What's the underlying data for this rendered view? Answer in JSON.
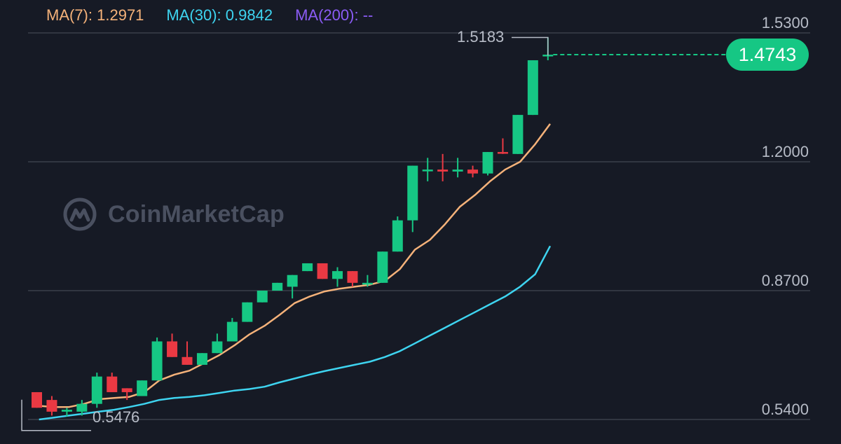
{
  "legend": {
    "ma7_label": "MA(7):",
    "ma7_value": "1.2971",
    "ma30_label": "MA(30):",
    "ma30_value": "0.9842",
    "ma200_label": "MA(200):",
    "ma200_value": "--"
  },
  "colors": {
    "background": "#161a25",
    "up": "#16c784",
    "down": "#ea3943",
    "ma7": "#f5b27a",
    "ma30": "#3ed4f0",
    "ma200": "#8b5cf6",
    "grid": "#3a3f4b",
    "text": "#b7bcc7"
  },
  "watermark": {
    "text": "CoinMarketCap",
    "icon": "coinmarketcap-logo-icon"
  },
  "last_price_label": "1.4743",
  "high_label": "1.5183",
  "low_label": "0.5476",
  "chart_data": {
    "type": "candlestick",
    "yticks": [
      1.53,
      1.2,
      0.87,
      0.54
    ],
    "ytick_labels": [
      "1.5300",
      "1.2000",
      "0.8700",
      "0.5400"
    ],
    "ylim": [
      0.52,
      1.55
    ],
    "grid": true,
    "last_price": 1.4743,
    "high": 1.5183,
    "low": 0.5476,
    "candles": [
      {
        "o": 0.61,
        "h": 0.61,
        "l": 0.57,
        "c": 0.57
      },
      {
        "o": 0.59,
        "h": 0.6,
        "l": 0.55,
        "c": 0.56
      },
      {
        "o": 0.56,
        "h": 0.57,
        "l": 0.548,
        "c": 0.565
      },
      {
        "o": 0.56,
        "h": 0.59,
        "l": 0.55,
        "c": 0.58
      },
      {
        "o": 0.58,
        "h": 0.66,
        "l": 0.57,
        "c": 0.65
      },
      {
        "o": 0.65,
        "h": 0.66,
        "l": 0.61,
        "c": 0.61
      },
      {
        "o": 0.62,
        "h": 0.62,
        "l": 0.59,
        "c": 0.61
      },
      {
        "o": 0.6,
        "h": 0.64,
        "l": 0.6,
        "c": 0.64
      },
      {
        "o": 0.64,
        "h": 0.75,
        "l": 0.64,
        "c": 0.74
      },
      {
        "o": 0.74,
        "h": 0.76,
        "l": 0.7,
        "c": 0.7
      },
      {
        "o": 0.7,
        "h": 0.74,
        "l": 0.68,
        "c": 0.68
      },
      {
        "o": 0.68,
        "h": 0.71,
        "l": 0.68,
        "c": 0.71
      },
      {
        "o": 0.71,
        "h": 0.76,
        "l": 0.71,
        "c": 0.74
      },
      {
        "o": 0.74,
        "h": 0.8,
        "l": 0.74,
        "c": 0.79
      },
      {
        "o": 0.79,
        "h": 0.84,
        "l": 0.79,
        "c": 0.84
      },
      {
        "o": 0.84,
        "h": 0.87,
        "l": 0.84,
        "c": 0.87
      },
      {
        "o": 0.87,
        "h": 0.89,
        "l": 0.87,
        "c": 0.89
      },
      {
        "o": 0.88,
        "h": 0.91,
        "l": 0.85,
        "c": 0.91
      },
      {
        "o": 0.92,
        "h": 0.94,
        "l": 0.92,
        "c": 0.94
      },
      {
        "o": 0.94,
        "h": 0.94,
        "l": 0.9,
        "c": 0.9
      },
      {
        "o": 0.9,
        "h": 0.93,
        "l": 0.88,
        "c": 0.92
      },
      {
        "o": 0.92,
        "h": 0.92,
        "l": 0.88,
        "c": 0.89
      },
      {
        "o": 0.89,
        "h": 0.91,
        "l": 0.88,
        "c": 0.89
      },
      {
        "o": 0.89,
        "h": 0.97,
        "l": 0.89,
        "c": 0.97
      },
      {
        "o": 0.97,
        "h": 1.06,
        "l": 0.97,
        "c": 1.05
      },
      {
        "o": 1.05,
        "h": 1.19,
        "l": 1.02,
        "c": 1.19
      },
      {
        "o": 1.18,
        "h": 1.21,
        "l": 1.15,
        "c": 1.18
      },
      {
        "o": 1.18,
        "h": 1.22,
        "l": 1.15,
        "c": 1.175
      },
      {
        "o": 1.175,
        "h": 1.21,
        "l": 1.16,
        "c": 1.18
      },
      {
        "o": 1.18,
        "h": 1.19,
        "l": 1.16,
        "c": 1.17
      },
      {
        "o": 1.17,
        "h": 1.225,
        "l": 1.165,
        "c": 1.225
      },
      {
        "o": 1.225,
        "h": 1.26,
        "l": 1.22,
        "c": 1.222
      },
      {
        "o": 1.22,
        "h": 1.32,
        "l": 1.22,
        "c": 1.32
      },
      {
        "o": 1.32,
        "h": 1.46,
        "l": 1.32,
        "c": 1.46
      },
      {
        "o": 1.47,
        "h": 1.5183,
        "l": 1.46,
        "c": 1.4743
      }
    ],
    "series": [
      {
        "name": "MA(7)",
        "values": [
          0.575,
          0.572,
          0.572,
          0.58,
          0.592,
          0.595,
          0.598,
          0.61,
          0.64,
          0.655,
          0.665,
          0.685,
          0.705,
          0.73,
          0.758,
          0.78,
          0.808,
          0.838,
          0.855,
          0.868,
          0.875,
          0.88,
          0.885,
          0.895,
          0.925,
          0.975,
          1.0,
          1.04,
          1.085,
          1.115,
          1.15,
          1.18,
          1.2,
          1.245,
          1.2971
        ]
      },
      {
        "name": "MA(30)",
        "values": [
          0.54,
          0.545,
          0.55,
          0.555,
          0.56,
          0.565,
          0.572,
          0.58,
          0.59,
          0.595,
          0.598,
          0.602,
          0.608,
          0.614,
          0.618,
          0.624,
          0.635,
          0.645,
          0.655,
          0.664,
          0.672,
          0.68,
          0.688,
          0.7,
          0.715,
          0.735,
          0.755,
          0.775,
          0.795,
          0.815,
          0.835,
          0.855,
          0.88,
          0.912,
          0.9842
        ]
      }
    ]
  }
}
